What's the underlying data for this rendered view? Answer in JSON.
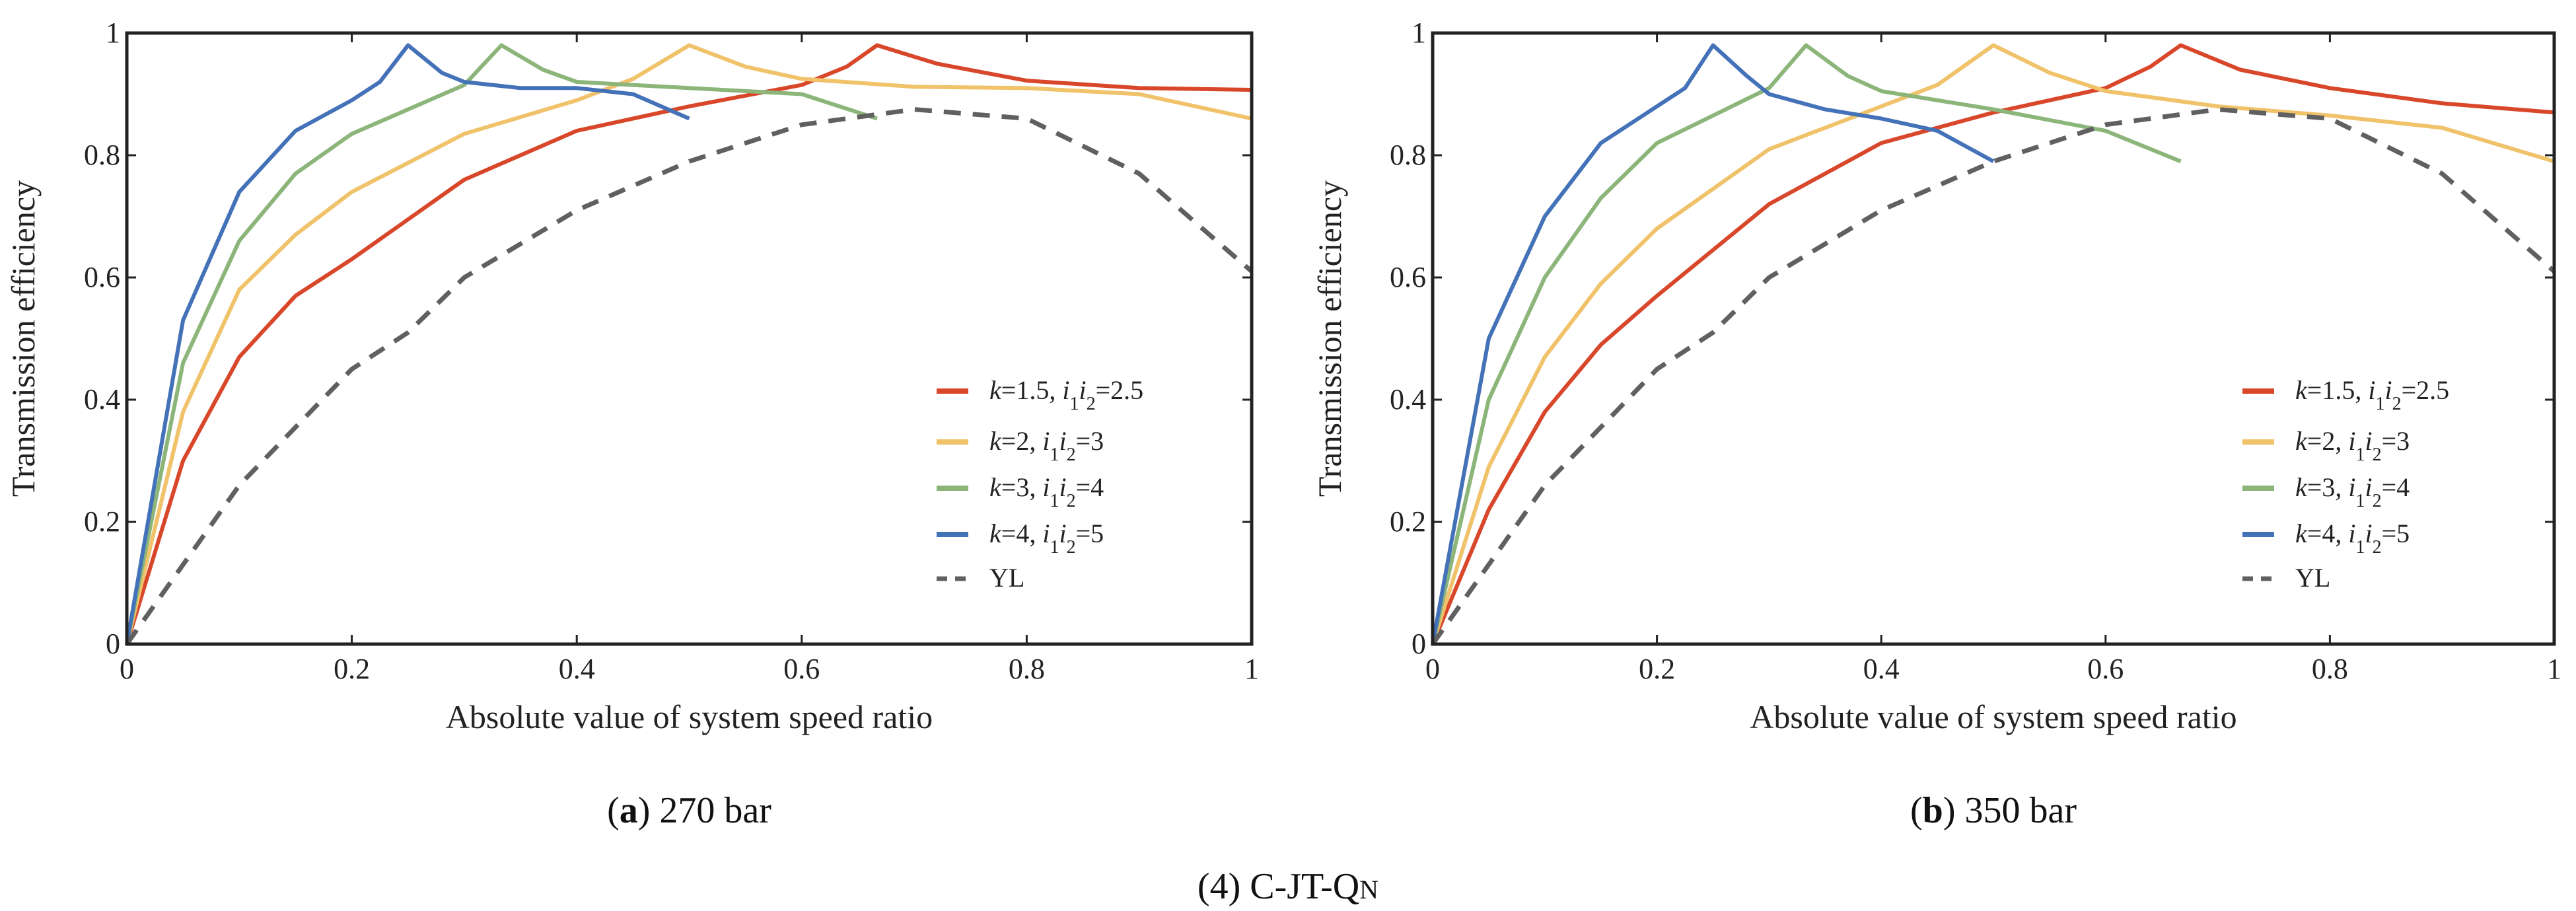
{
  "figure_caption": {
    "prefix": "(4) C-JT-Q",
    "subscript": "N"
  },
  "colors": {
    "red": "#d9472b",
    "yellow": "#f0c26a",
    "green": "#8cb57a",
    "blue": "#4472b8",
    "yl": "#606060"
  },
  "chart_data": [
    {
      "type": "line",
      "caption_letter": "a",
      "caption_text": " 270 bar",
      "xlabel": "Absolute value of system speed ratio",
      "ylabel": "Transmission efficiency",
      "xlim": [
        0,
        1
      ],
      "ylim": [
        0,
        1
      ],
      "xticks": [
        "0",
        "0.2",
        "0.4",
        "0.6",
        "0.8",
        "1"
      ],
      "yticks": [
        "0",
        "0.2",
        "0.4",
        "0.6",
        "0.8",
        "1"
      ],
      "legend_position": "lower-right",
      "series": [
        {
          "name": "k=1.5, i1i2=2.5",
          "parts": [
            "k",
            "=1.5, ",
            "i",
            "1",
            "i",
            "2",
            "=2.5"
          ],
          "color": "#d9472b",
          "dash": false,
          "x": [
            0,
            0.05,
            0.1,
            0.15,
            0.2,
            0.3,
            0.4,
            0.5,
            0.6,
            0.64,
            0.667,
            0.72,
            0.8,
            0.9,
            1.0
          ],
          "y": [
            0,
            0.3,
            0.47,
            0.57,
            0.63,
            0.76,
            0.84,
            0.88,
            0.915,
            0.945,
            0.98,
            0.95,
            0.922,
            0.91,
            0.907
          ]
        },
        {
          "name": "k=2, i1i2=3",
          "parts": [
            "k",
            "=2, ",
            "i",
            "1",
            "i",
            "2",
            "=3"
          ],
          "color": "#f0c26a",
          "dash": false,
          "x": [
            0,
            0.05,
            0.1,
            0.15,
            0.2,
            0.3,
            0.4,
            0.45,
            0.5,
            0.55,
            0.6,
            0.7,
            0.8,
            0.9,
            1.0
          ],
          "y": [
            0,
            0.38,
            0.58,
            0.67,
            0.74,
            0.835,
            0.89,
            0.925,
            0.98,
            0.945,
            0.925,
            0.912,
            0.91,
            0.9,
            0.86
          ]
        },
        {
          "name": "k=3, i1i2=4",
          "parts": [
            "k",
            "=3, ",
            "i",
            "1",
            "i",
            "2",
            "=4"
          ],
          "color": "#8cb57a",
          "dash": false,
          "x": [
            0,
            0.05,
            0.1,
            0.15,
            0.2,
            0.25,
            0.3,
            0.333,
            0.37,
            0.4,
            0.5,
            0.6,
            0.667
          ],
          "y": [
            0,
            0.46,
            0.66,
            0.77,
            0.835,
            0.875,
            0.915,
            0.98,
            0.94,
            0.92,
            0.91,
            0.9,
            0.86
          ]
        },
        {
          "name": "k=4, i1i2=5",
          "parts": [
            "k",
            "=4, ",
            "i",
            "1",
            "i",
            "2",
            "=5"
          ],
          "color": "#4472b8",
          "dash": false,
          "x": [
            0,
            0.05,
            0.1,
            0.15,
            0.2,
            0.225,
            0.25,
            0.28,
            0.3,
            0.35,
            0.4,
            0.45,
            0.5
          ],
          "y": [
            0,
            0.53,
            0.74,
            0.84,
            0.89,
            0.92,
            0.98,
            0.935,
            0.92,
            0.91,
            0.91,
            0.9,
            0.86
          ]
        },
        {
          "name": "YL",
          "parts": [
            "YL"
          ],
          "color": "#606060",
          "dash": true,
          "x": [
            0,
            0.1,
            0.2,
            0.25,
            0.3,
            0.4,
            0.5,
            0.6,
            0.7,
            0.8,
            0.9,
            1.0
          ],
          "y": [
            0,
            0.26,
            0.45,
            0.51,
            0.6,
            0.71,
            0.79,
            0.85,
            0.875,
            0.86,
            0.77,
            0.61
          ]
        }
      ]
    },
    {
      "type": "line",
      "caption_letter": "b",
      "caption_text": " 350 bar",
      "xlabel": "Absolute value of system speed ratio",
      "ylabel": "Transmission efficiency",
      "xlim": [
        0,
        1
      ],
      "ylim": [
        0,
        1
      ],
      "xticks": [
        "0",
        "0.2",
        "0.4",
        "0.6",
        "0.8",
        "1"
      ],
      "yticks": [
        "0",
        "0.2",
        "0.4",
        "0.6",
        "0.8",
        "1"
      ],
      "legend_position": "lower-right",
      "series": [
        {
          "name": "k=1.5, i1i2=2.5",
          "parts": [
            "k",
            "=1.5, ",
            "i",
            "1",
            "i",
            "2",
            "=2.5"
          ],
          "color": "#d9472b",
          "dash": false,
          "x": [
            0,
            0.05,
            0.1,
            0.15,
            0.2,
            0.3,
            0.4,
            0.5,
            0.6,
            0.64,
            0.667,
            0.72,
            0.8,
            0.9,
            1.0
          ],
          "y": [
            0,
            0.22,
            0.38,
            0.49,
            0.57,
            0.72,
            0.82,
            0.87,
            0.91,
            0.945,
            0.98,
            0.94,
            0.91,
            0.885,
            0.87
          ]
        },
        {
          "name": "k=2, i1i2=3",
          "parts": [
            "k",
            "=2, ",
            "i",
            "1",
            "i",
            "2",
            "=3"
          ],
          "color": "#f0c26a",
          "dash": false,
          "x": [
            0,
            0.05,
            0.1,
            0.15,
            0.2,
            0.3,
            0.4,
            0.45,
            0.5,
            0.55,
            0.6,
            0.7,
            0.8,
            0.9,
            1.0
          ],
          "y": [
            0,
            0.29,
            0.47,
            0.59,
            0.68,
            0.81,
            0.88,
            0.915,
            0.98,
            0.935,
            0.905,
            0.88,
            0.865,
            0.845,
            0.79
          ]
        },
        {
          "name": "k=3, i1i2=4",
          "parts": [
            "k",
            "=3, ",
            "i",
            "1",
            "i",
            "2",
            "=4"
          ],
          "color": "#8cb57a",
          "dash": false,
          "x": [
            0,
            0.05,
            0.1,
            0.15,
            0.2,
            0.25,
            0.3,
            0.333,
            0.37,
            0.4,
            0.5,
            0.6,
            0.667
          ],
          "y": [
            0,
            0.4,
            0.6,
            0.73,
            0.82,
            0.865,
            0.91,
            0.98,
            0.93,
            0.905,
            0.875,
            0.84,
            0.79
          ]
        },
        {
          "name": "k=4, i1i2=5",
          "parts": [
            "k",
            "=4, ",
            "i",
            "1",
            "i",
            "2",
            "=5"
          ],
          "color": "#4472b8",
          "dash": false,
          "x": [
            0,
            0.05,
            0.1,
            0.15,
            0.2,
            0.225,
            0.25,
            0.28,
            0.3,
            0.35,
            0.4,
            0.45,
            0.5
          ],
          "y": [
            0,
            0.5,
            0.7,
            0.82,
            0.88,
            0.91,
            0.98,
            0.93,
            0.9,
            0.875,
            0.86,
            0.84,
            0.79
          ]
        },
        {
          "name": "YL",
          "parts": [
            "YL"
          ],
          "color": "#606060",
          "dash": true,
          "x": [
            0,
            0.1,
            0.2,
            0.25,
            0.3,
            0.4,
            0.5,
            0.6,
            0.7,
            0.8,
            0.9,
            1.0
          ],
          "y": [
            0,
            0.26,
            0.45,
            0.51,
            0.6,
            0.71,
            0.79,
            0.85,
            0.875,
            0.86,
            0.77,
            0.61
          ]
        }
      ]
    }
  ]
}
